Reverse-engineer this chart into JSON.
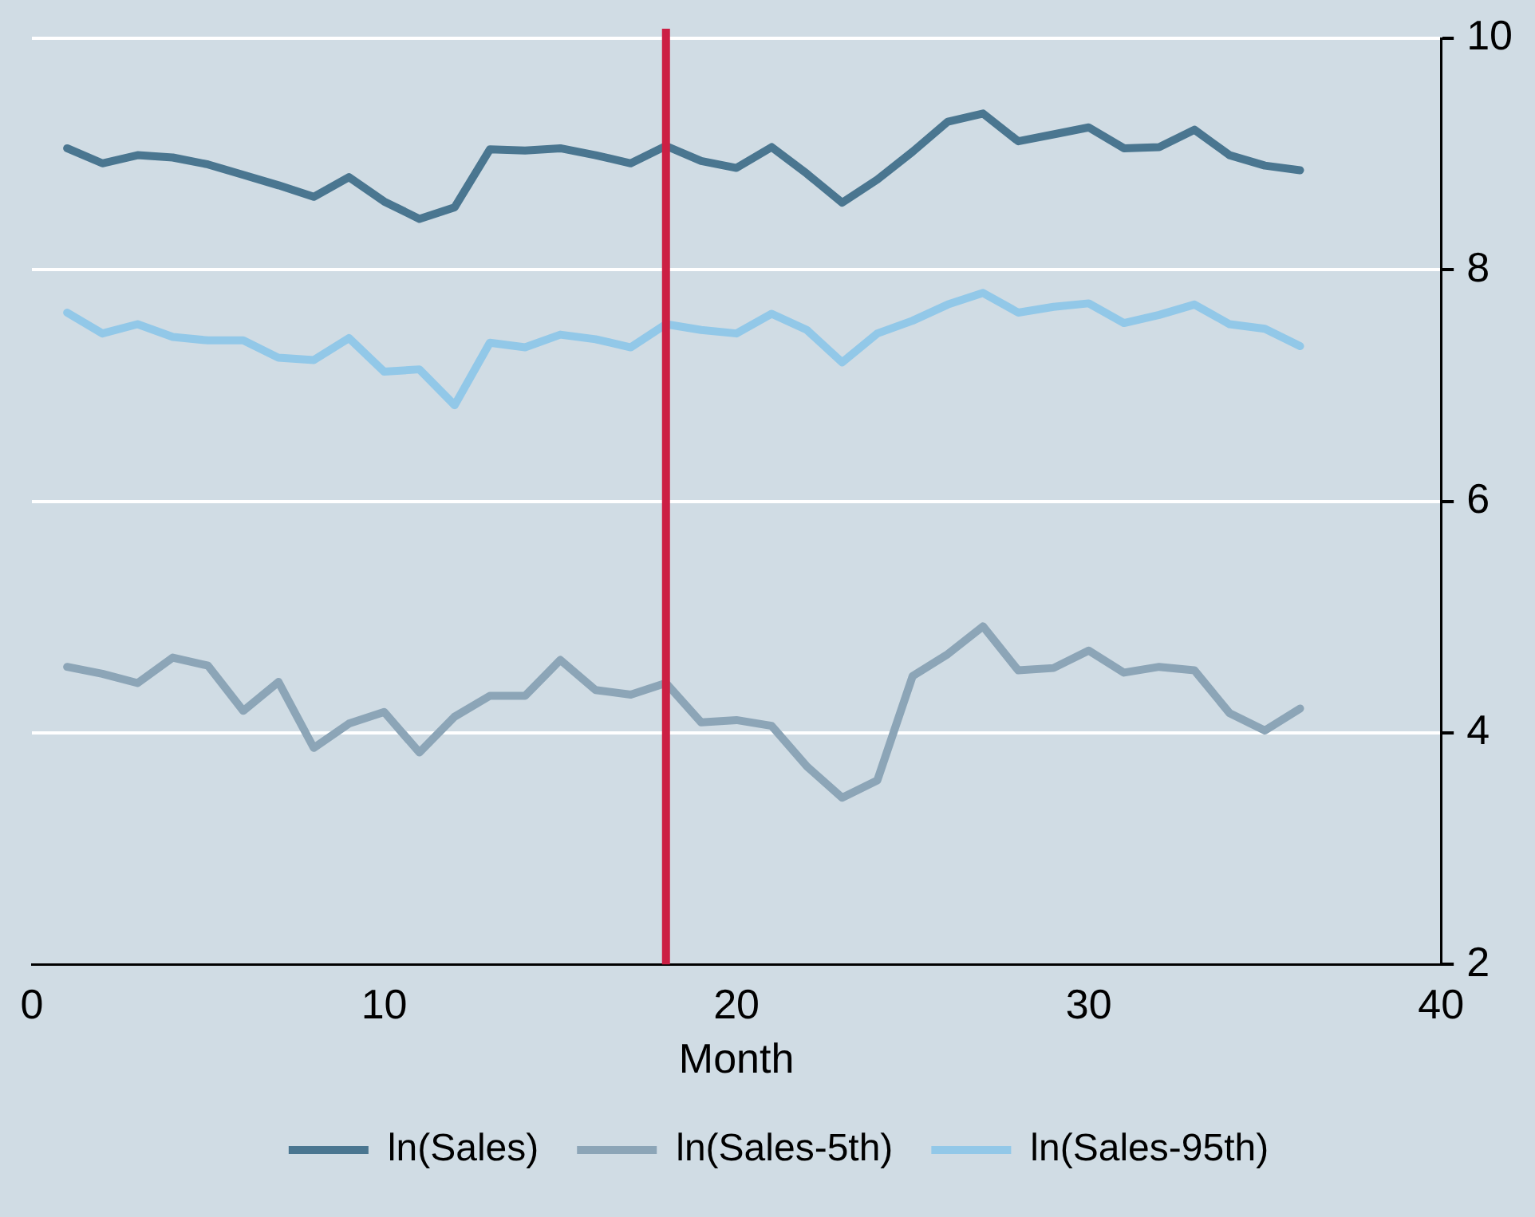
{
  "chart_data": {
    "type": "line",
    "xlabel": "Month",
    "x": [
      1,
      2,
      3,
      4,
      5,
      6,
      7,
      8,
      9,
      10,
      11,
      12,
      13,
      14,
      15,
      16,
      17,
      18,
      19,
      20,
      21,
      22,
      23,
      24,
      25,
      26,
      27,
      28,
      29,
      30,
      31,
      32,
      33,
      34,
      35,
      36
    ],
    "series": [
      {
        "name": "ln(Sales)",
        "color": "#4a7690",
        "values": [
          9.05,
          8.92,
          8.99,
          8.97,
          8.91,
          8.82,
          8.73,
          8.63,
          8.8,
          8.59,
          8.44,
          8.54,
          9.04,
          9.03,
          9.05,
          8.99,
          8.92,
          9.07,
          8.94,
          8.88,
          9.06,
          8.83,
          8.58,
          8.78,
          9.02,
          9.28,
          9.35,
          9.11,
          9.17,
          9.23,
          9.05,
          9.06,
          9.21,
          8.99,
          8.9,
          8.86
        ]
      },
      {
        "name": "ln(Sales-5th)",
        "color": "#8ca5b7",
        "values": [
          4.57,
          4.51,
          4.43,
          4.65,
          4.58,
          4.19,
          4.44,
          3.87,
          4.08,
          4.18,
          3.83,
          4.14,
          4.32,
          4.32,
          4.63,
          4.37,
          4.33,
          4.43,
          4.09,
          4.11,
          4.06,
          3.71,
          3.44,
          3.59,
          4.49,
          4.68,
          4.92,
          4.54,
          4.56,
          4.71,
          4.52,
          4.57,
          4.54,
          4.17,
          4.02,
          4.21
        ]
      },
      {
        "name": "ln(Sales-95th)",
        "color": "#92c8e8",
        "values": [
          7.63,
          7.45,
          7.53,
          7.42,
          7.39,
          7.39,
          7.24,
          7.22,
          7.41,
          7.12,
          7.14,
          6.83,
          7.37,
          7.33,
          7.44,
          7.4,
          7.33,
          7.53,
          7.48,
          7.45,
          7.62,
          7.48,
          7.2,
          7.45,
          7.56,
          7.7,
          7.8,
          7.63,
          7.68,
          7.71,
          7.54,
          7.61,
          7.7,
          7.53,
          7.49,
          7.34
        ]
      }
    ],
    "xlim": [
      0,
      40
    ],
    "xticks": [
      0,
      10,
      20,
      30,
      40
    ],
    "ylim": [
      2,
      10
    ],
    "yticks": [
      2,
      4,
      6,
      8,
      10
    ],
    "ref_lines": [
      {
        "axis": "x",
        "value": 18,
        "color": "#cc1f44"
      }
    ],
    "grid": "y",
    "legend": "bottom",
    "marker": "none",
    "line_style": "solid"
  }
}
